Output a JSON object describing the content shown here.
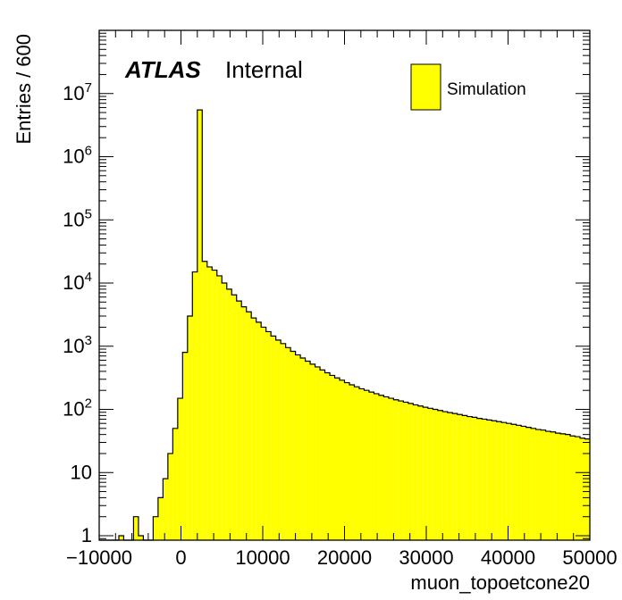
{
  "chart_data": {
    "type": "histogram",
    "xlabel": "muon_topoetcone20",
    "ylabel": "Entries / 600",
    "xlim": [
      -10000,
      50000
    ],
    "ylim": [
      0.85,
      100000000
    ],
    "y_scale": "log",
    "bin_width": 600,
    "grid": false,
    "fill_color": "#ffff00",
    "x_ticks": [
      {
        "value": -10000,
        "label": "−10000"
      },
      {
        "value": 0,
        "label": "0"
      },
      {
        "value": 10000,
        "label": "10000"
      },
      {
        "value": 20000,
        "label": "20000"
      },
      {
        "value": 30000,
        "label": "30000"
      },
      {
        "value": 40000,
        "label": "40000"
      },
      {
        "value": 50000,
        "label": "50000"
      }
    ],
    "y_ticks": [
      {
        "value": 1,
        "base": "1",
        "exp": ""
      },
      {
        "value": 10,
        "base": "10",
        "exp": ""
      },
      {
        "value": 100,
        "base": "10",
        "exp": "2"
      },
      {
        "value": 1000,
        "base": "10",
        "exp": "3"
      },
      {
        "value": 10000,
        "base": "10",
        "exp": "4"
      },
      {
        "value": 100000,
        "base": "10",
        "exp": "5"
      },
      {
        "value": 1000000,
        "base": "10",
        "exp": "6"
      },
      {
        "value": 10000000,
        "base": "10",
        "exp": "7"
      }
    ],
    "legend": {
      "label": "Simulation",
      "position": "top-right"
    },
    "label": {
      "atlas": "ATLAS",
      "status": "Internal"
    },
    "series": [
      {
        "name": "Simulation",
        "x_start": -10000,
        "values": [
          0,
          0,
          0,
          0,
          1,
          0,
          0,
          2,
          1,
          0,
          0,
          2,
          4,
          8,
          20,
          50,
          150,
          800,
          3000,
          15000,
          5500000,
          22000,
          18000,
          16000,
          13000,
          10000,
          8000,
          6500,
          5200,
          4200,
          3500,
          2800,
          2400,
          2000,
          1700,
          1450,
          1250,
          1100,
          950,
          830,
          730,
          650,
          580,
          520,
          470,
          420,
          380,
          345,
          315,
          290,
          265,
          245,
          228,
          212,
          200,
          188,
          177,
          167,
          158,
          150,
          142,
          136,
          130,
          124,
          118,
          113,
          108,
          104,
          100,
          96,
          92,
          89,
          86,
          83,
          80,
          77,
          75,
          72,
          70,
          68,
          66,
          64,
          62,
          60,
          58,
          56,
          54,
          52,
          50,
          48,
          47,
          45,
          44,
          42,
          41,
          40,
          38,
          37,
          35,
          34
        ]
      }
    ]
  }
}
